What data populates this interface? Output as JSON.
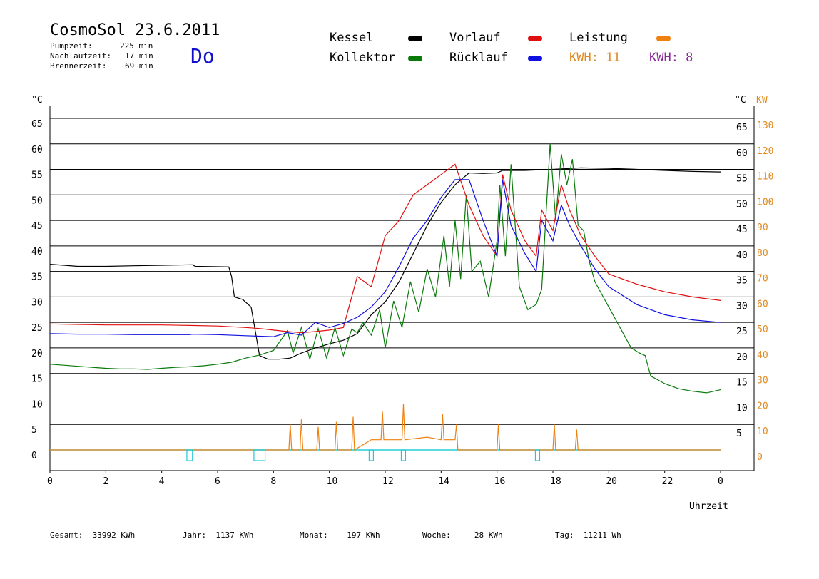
{
  "header": {
    "title": "CosmoSol 23.6.2011",
    "stats": [
      {
        "label": "Pumpzeit:",
        "value": "225 min"
      },
      {
        "label": "Nachlaufzeit:",
        "value": "17 min"
      },
      {
        "label": "Brennerzeit:",
        "value": "69 min"
      }
    ],
    "weekday": "Do"
  },
  "legend": {
    "kessel": {
      "label": "Kessel",
      "color": "#000000"
    },
    "kollektor": {
      "label": "Kollektor",
      "color": "#0a7a0a"
    },
    "vorlauf": {
      "label": "Vorlauf",
      "color": "#e01010"
    },
    "ruecklauf": {
      "label": "Rücklauf",
      "color": "#1010e0"
    },
    "leistung": {
      "label": "Leistung",
      "color": "#f08010"
    },
    "kwh1": {
      "label": "KWH: 11",
      "color": "#e08a20"
    },
    "kwh2": {
      "label": "KWH: 8",
      "color": "#8a2a9a"
    }
  },
  "axes": {
    "left_unit": "°C",
    "right_unit": "°C",
    "right_unit2": "KW",
    "x_title": "Uhrzeit",
    "left_ticks": [
      "65",
      "60",
      "55",
      "50",
      "45",
      "40",
      "35",
      "30",
      "25",
      "20",
      "15",
      "10",
      "5",
      "0"
    ],
    "right_ticks": [
      "65",
      "60",
      "55",
      "50",
      "45",
      "40",
      "35",
      "30",
      "25",
      "20",
      "15",
      "10",
      "5"
    ],
    "kw_ticks": [
      "130",
      "120",
      "110",
      "100",
      "90",
      "80",
      "70",
      "60",
      "50",
      "40",
      "30",
      "20",
      "10",
      "0"
    ],
    "x_ticks": [
      "0",
      "2",
      "4",
      "6",
      "8",
      "10",
      "12",
      "14",
      "16",
      "18",
      "20",
      "22",
      "0"
    ]
  },
  "footer": {
    "gesamt": "Gesamt:  33992 KWh",
    "jahr": "Jahr:  1137 KWh",
    "monat": "Monat:    197 KWh",
    "woche": "Woche:     28 KWh",
    "tag": "Tag:  11211 Wh"
  },
  "chart_data": {
    "type": "line",
    "xlabel": "Uhrzeit",
    "ylabel": "°C",
    "y2label": "KW",
    "xlim": [
      0,
      24
    ],
    "ylim": [
      0,
      65
    ],
    "y2lim": [
      0,
      130
    ],
    "series": [
      {
        "name": "Kessel",
        "color": "#000000",
        "x": [
          0,
          0.5,
          1,
          2,
          3,
          4,
          5.1,
          5.2,
          6.4,
          6.5,
          6.6,
          6.9,
          7.2,
          7.5,
          7.8,
          8.2,
          8.6,
          9,
          9.5,
          10,
          10.5,
          11,
          11.5,
          12,
          12.5,
          13,
          13.5,
          14,
          14.5,
          15,
          15.5,
          16,
          16.2,
          16.5,
          17,
          18,
          19,
          20,
          21,
          22,
          23,
          24
        ],
        "y": [
          36.4,
          36.2,
          36.0,
          36.0,
          36.1,
          36.2,
          36.3,
          36.0,
          35.9,
          34.0,
          30.0,
          29.5,
          28.0,
          18.5,
          17.8,
          17.8,
          18.0,
          19.0,
          20.0,
          20.8,
          21.5,
          22.8,
          26.5,
          29.0,
          33.0,
          38.5,
          44.0,
          48.5,
          52.0,
          54.3,
          54.2,
          54.3,
          54.8,
          54.8,
          54.8,
          55.0,
          55.3,
          55.2,
          55.0,
          54.8,
          54.6,
          54.5
        ]
      },
      {
        "name": "Kollektor",
        "color": "#0a7a0a",
        "x": [
          0,
          0.5,
          1,
          1.5,
          2,
          2.5,
          3,
          3.5,
          4,
          4.5,
          5,
          5.5,
          6,
          6.5,
          7,
          7.5,
          8,
          8.3,
          8.5,
          8.7,
          9,
          9.3,
          9.6,
          9.9,
          10.2,
          10.5,
          10.8,
          11,
          11.2,
          11.5,
          11.8,
          12,
          12.3,
          12.6,
          12.9,
          13.2,
          13.5,
          13.8,
          14.1,
          14.3,
          14.5,
          14.7,
          14.9,
          15.1,
          15.4,
          15.7,
          16,
          16.1,
          16.3,
          16.5,
          16.8,
          17.1,
          17.4,
          17.6,
          17.9,
          18.1,
          18.3,
          18.5,
          18.7,
          18.9,
          19.1,
          19.3,
          19.5,
          19.8,
          20.1,
          20.4,
          20.8,
          21.1,
          21.3,
          21.5,
          22,
          22.5,
          23,
          23.5,
          24
        ],
        "y": [
          16.8,
          16.6,
          16.4,
          16.2,
          16.0,
          15.9,
          15.9,
          15.8,
          16.0,
          16.2,
          16.3,
          16.5,
          16.8,
          17.2,
          18.0,
          18.6,
          19.5,
          21.8,
          23.4,
          19.0,
          24.0,
          17.8,
          23.8,
          18.0,
          24.0,
          18.5,
          23.7,
          23.0,
          25.0,
          22.5,
          27.5,
          20.0,
          29.2,
          24.0,
          33.0,
          27.0,
          35.5,
          30.0,
          42.0,
          32.0,
          45.0,
          33.5,
          50.0,
          35.0,
          37.0,
          30.0,
          41.0,
          52.0,
          38.0,
          56.0,
          32.0,
          27.5,
          28.5,
          31.5,
          60.0,
          45.0,
          58.0,
          52.0,
          57.0,
          44.0,
          43.0,
          37.0,
          33.0,
          30.0,
          27.0,
          24.0,
          20.0,
          19.0,
          18.5,
          14.5,
          13.0,
          12.0,
          11.5,
          11.2,
          11.8
        ]
      },
      {
        "name": "Vorlauf",
        "color": "#e01010",
        "x": [
          0,
          1,
          2,
          3,
          4,
          5,
          6,
          7,
          7.5,
          8,
          8.5,
          9,
          9.5,
          10,
          10.5,
          11,
          11.5,
          12,
          12.5,
          13,
          13.5,
          14,
          14.5,
          15,
          15.5,
          16,
          16.2,
          16.5,
          17,
          17.4,
          17.6,
          18,
          18.3,
          18.6,
          19,
          19.5,
          20,
          21,
          22,
          23,
          24
        ],
        "y": [
          24.7,
          24.6,
          24.5,
          24.5,
          24.5,
          24.4,
          24.3,
          24.0,
          23.8,
          23.5,
          23.2,
          23.0,
          23.2,
          23.5,
          24.0,
          34.0,
          32.0,
          42.0,
          45.0,
          50.0,
          52.0,
          54.0,
          56.0,
          48.0,
          42.0,
          38.0,
          54.0,
          47.0,
          41.0,
          38.0,
          47.0,
          43.0,
          52.0,
          47.0,
          42.0,
          38.0,
          34.5,
          32.5,
          31.0,
          30.0,
          29.3
        ]
      },
      {
        "name": "Rücklauf",
        "color": "#1010e0",
        "x": [
          0,
          1,
          2,
          3,
          4,
          5,
          5.1,
          6,
          7,
          8,
          8.5,
          9,
          9.5,
          10,
          10.5,
          11,
          11.5,
          12,
          12.5,
          13,
          13.5,
          14,
          14.5,
          15,
          15.5,
          16,
          16.2,
          16.5,
          17,
          17.4,
          17.6,
          18,
          18.3,
          18.6,
          19,
          19.5,
          20,
          21,
          22,
          23,
          24
        ],
        "y": [
          22.8,
          22.7,
          22.7,
          22.6,
          22.6,
          22.6,
          22.7,
          22.6,
          22.4,
          22.2,
          23.0,
          22.5,
          25.0,
          24.0,
          24.8,
          26.0,
          28.0,
          31.0,
          36.0,
          41.5,
          45.0,
          49.5,
          53.0,
          53.0,
          45.0,
          38.0,
          53.0,
          44.0,
          38.5,
          35.0,
          45.0,
          41.0,
          48.0,
          44.0,
          40.0,
          35.5,
          32.0,
          28.5,
          26.5,
          25.5,
          25.0
        ]
      },
      {
        "name": "Leistung",
        "color": "#f08010",
        "axis": "KW",
        "x": [
          0,
          8.55,
          8.6,
          8.65,
          8.95,
          9.0,
          9.05,
          9.55,
          9.6,
          9.65,
          10.2,
          10.25,
          10.3,
          10.8,
          10.85,
          10.9,
          11.5,
          11.85,
          11.9,
          11.95,
          12.6,
          12.65,
          12.7,
          13.5,
          14.0,
          14.05,
          14.1,
          14.5,
          14.55,
          14.6,
          16.0,
          16.05,
          16.1,
          18.0,
          18.05,
          18.1,
          18.8,
          18.85,
          18.9,
          24
        ],
        "y": [
          0,
          0,
          10,
          0,
          0,
          12,
          0,
          0,
          9,
          0,
          0,
          11,
          0,
          0,
          13,
          0,
          4,
          4,
          15,
          4,
          4,
          18,
          4,
          5,
          4,
          14,
          4,
          4,
          10,
          0,
          0,
          10,
          0,
          0,
          10,
          0,
          0,
          8,
          0,
          0
        ]
      }
    ],
    "pump_marks": [
      {
        "x": 5.0,
        "width_h": 0.2
      },
      {
        "x": 7.5,
        "width_h": 0.4
      },
      {
        "x": 11.5,
        "width_h": 0.1
      },
      {
        "x": 12.65,
        "width_h": 0.15
      },
      {
        "x": 17.45,
        "width_h": 0.1
      }
    ],
    "legend_position": "top"
  }
}
